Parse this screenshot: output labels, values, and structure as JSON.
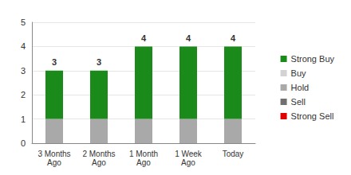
{
  "chart_data": {
    "type": "bar",
    "stacked": true,
    "grid": true,
    "legend": "right",
    "categories": [
      "3 Months\nAgo",
      "2 Months\nAgo",
      "1 Month\nAgo",
      "1 Week\nAgo",
      "Today"
    ],
    "series": [
      {
        "name": "Strong Buy",
        "color": "#1a8a1a",
        "values": [
          2,
          2,
          3,
          3,
          3
        ]
      },
      {
        "name": "Buy",
        "color": "#d3d3d3",
        "values": [
          0,
          0,
          0,
          0,
          0
        ]
      },
      {
        "name": "Hold",
        "color": "#a9a9a9",
        "values": [
          1,
          1,
          1,
          1,
          1
        ]
      },
      {
        "name": "Sell",
        "color": "#707070",
        "values": [
          0,
          0,
          0,
          0,
          0
        ]
      },
      {
        "name": "Strong Sell",
        "color": "#e00000",
        "values": [
          0,
          0,
          0,
          0,
          0
        ]
      }
    ],
    "totals": [
      3,
      3,
      4,
      4,
      4
    ],
    "ylim": [
      0,
      5
    ],
    "yticks": [
      0,
      1,
      2,
      3,
      4,
      5
    ]
  }
}
